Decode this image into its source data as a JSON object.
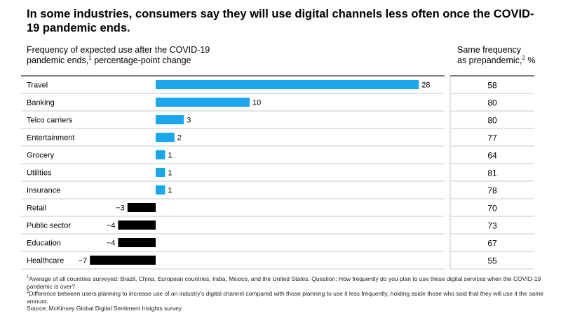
{
  "title": "In some industries, consumers say they will use digital channels less often once the COVID-19 pandemic ends.",
  "header_left": {
    "line1": "Frequency of expected use after the COVID-19",
    "line2_prefix": "pandemic ends,",
    "line2_sup": "1",
    "line2_suffix": "percentage-point change"
  },
  "header_right": {
    "line1": "Same frequency",
    "line2_prefix": "as prepandemic,",
    "line2_sup": "2",
    "line2_suffix": "%"
  },
  "colors": {
    "positive": "#1aa7ec",
    "negative": "#000000",
    "rule": "#b8b8b8"
  },
  "chart_data": {
    "type": "bar",
    "orientation": "horizontal",
    "categories": [
      "Travel",
      "Banking",
      "Telco carriers",
      "Entertainment",
      "Grocery",
      "Utilities",
      "Insurance",
      "Retail",
      "Public sector",
      "Education",
      "Healthcare"
    ],
    "values": [
      28,
      10,
      3,
      2,
      1,
      1,
      1,
      -3,
      -4,
      -4,
      -7
    ],
    "value_labels": [
      "28",
      "10",
      "3",
      "2",
      "1",
      "1",
      "1",
      "−3",
      "−4",
      "−4",
      "−7"
    ],
    "same_frequency": [
      "58",
      "80",
      "80",
      "77",
      "64",
      "81",
      "78",
      "70",
      "73",
      "67",
      "55"
    ],
    "xlim": [
      -7,
      28
    ]
  },
  "footnotes": {
    "note1_sup": "1",
    "note1": "Average of all countries surveyed: Brazil, China, European countries, India, Mexico, and the United States. Question: How frequently do you plan to use these digital services when the COVID-19 pandemic is over?",
    "note2_sup": "2",
    "note2": "Difference between users planning to increase use of an industry's digital channel compared with those planning to use it less frequently, holding aside those who said that they will use it the same amount.",
    "source": "Source: McKinsey Global Digital Sentiment Insights survey"
  }
}
